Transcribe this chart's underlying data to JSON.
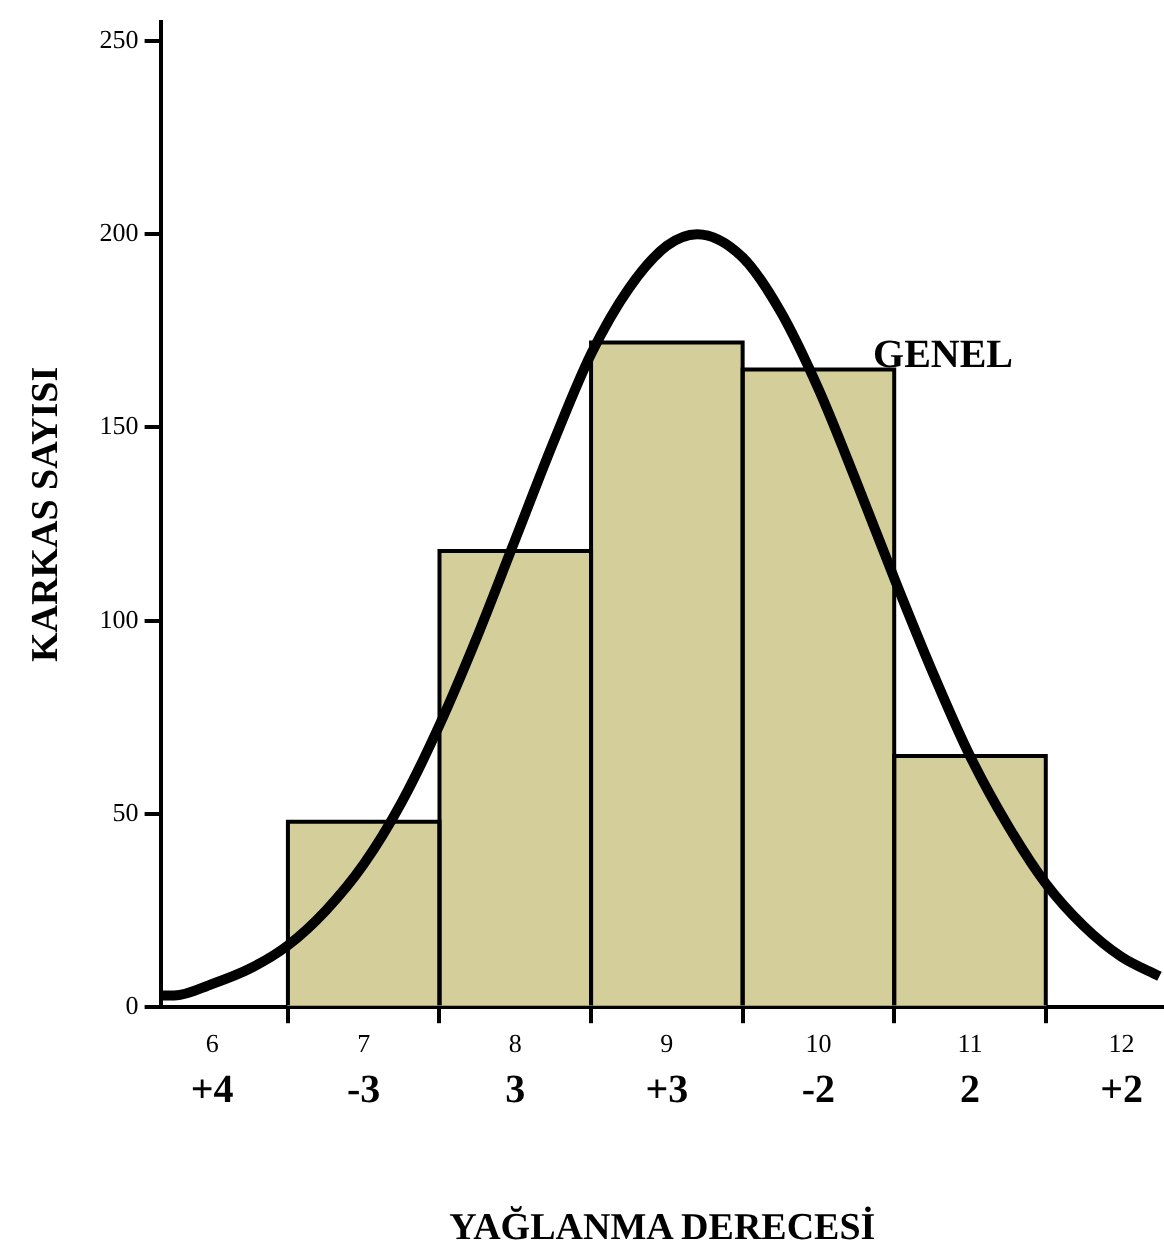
{
  "chart_data": {
    "type": "histogram",
    "xlabel": "YAĞLANMA DERECESİ",
    "ylabel": "KARKAS SAYISI",
    "bins": [
      6.5,
      7.5,
      8.5,
      9.5,
      10.5,
      11.5
    ],
    "values": [
      48,
      118,
      172,
      165,
      65
    ],
    "color": "#d4cf9a",
    "series": [
      {
        "type": "line",
        "color": "#000000",
        "x": [
          5.66,
          5.75,
          6,
          6.25,
          6.5,
          6.75,
          7,
          7.25,
          7.5,
          7.75,
          8,
          8.25,
          8.5,
          8.75,
          9,
          9.2,
          9.5,
          9.75,
          10,
          10.25,
          10.5,
          10.75,
          11,
          11.25,
          11.5,
          11.75,
          12,
          12.25
        ],
        "values": [
          3,
          3,
          6,
          10,
          16,
          25,
          37,
          53,
          73,
          96,
          121,
          146,
          169,
          186,
          197,
          200,
          194,
          180,
          160,
          136,
          111,
          87,
          65,
          47,
          32,
          21,
          13,
          8
        ]
      }
    ],
    "xlim": [
      5.66,
      12.28
    ],
    "xticks": [
      6,
      7,
      8,
      9,
      10,
      11,
      12
    ],
    "ylim": [
      0,
      255
    ],
    "yticks": [
      0,
      50,
      100,
      150,
      200,
      250
    ],
    "annotations": [
      "GENEL",
      "+4",
      "-3",
      "3",
      "+3",
      "-2",
      "2",
      "+2"
    ],
    "grid": false,
    "legend": false,
    "marker": "none",
    "line_style": "solid"
  }
}
